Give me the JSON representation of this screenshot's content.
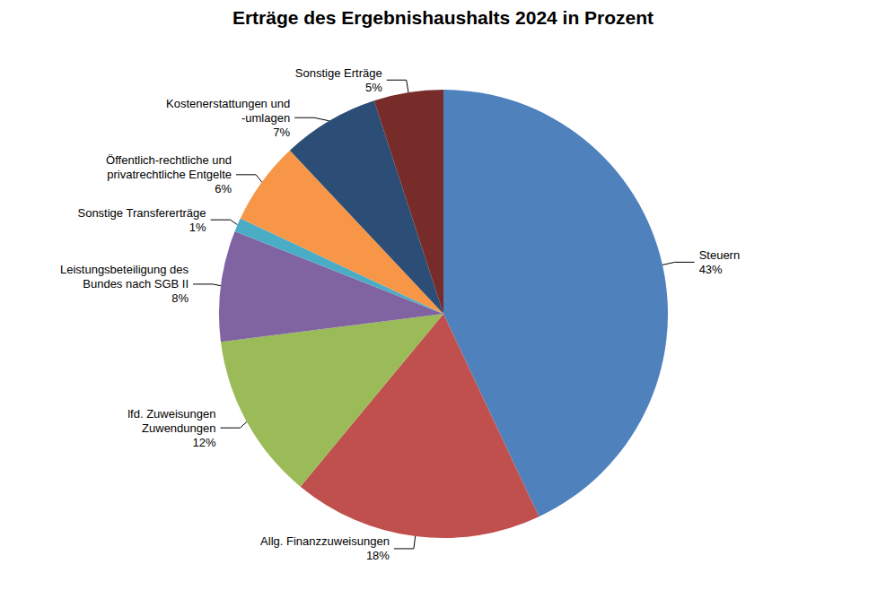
{
  "chart_data": {
    "type": "pie",
    "title": "Erträge des Ergebnishaushalts 2024 in Prozent",
    "categories": [
      "Steuern",
      "Allg. Finanzzuweisungen",
      "lfd. Zuweisungen\nZuwendungen",
      "Leistungsbeteiligung des\nBundes nach SGB II",
      "Sonstige Transfererträge",
      "Öffentlich-rechtliche und\nprivatrechtliche Entgelte",
      "Kostenerstattungen und\n-umlagen",
      "Sonstige Erträge"
    ],
    "values": [
      43,
      18,
      12,
      8,
      1,
      6,
      7,
      5
    ],
    "value_labels": [
      "43%",
      "18%",
      "12%",
      "8%",
      "1%",
      "6%",
      "7%",
      "5%"
    ],
    "colors": [
      "#4f81bd",
      "#c0504d",
      "#9bbb59",
      "#8064a2",
      "#4bacc6",
      "#f79646",
      "#2c4d75",
      "#772c2a"
    ],
    "data_labels": true
  }
}
